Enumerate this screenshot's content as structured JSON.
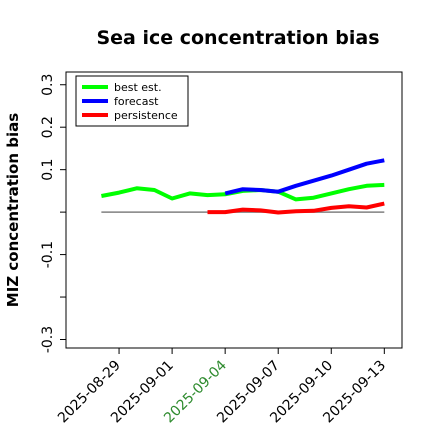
{
  "chart_data": {
    "type": "line",
    "title": "Sea ice concentration bias",
    "xlabel": "",
    "ylabel": "MIZ concentration bias",
    "ylim": [
      -0.32,
      0.33
    ],
    "yticks": [
      {
        "value": 0.3,
        "label": "0.3"
      },
      {
        "value": 0.2,
        "label": "0.2"
      },
      {
        "value": 0.1,
        "label": "0.1"
      },
      {
        "value": 0.0,
        "label": ""
      },
      {
        "value": -0.1,
        "label": "-0.1"
      },
      {
        "value": -0.2,
        "label": ""
      },
      {
        "value": -0.3,
        "label": "-0.3"
      }
    ],
    "xlim": [
      "2025-08-26",
      "2025-09-14"
    ],
    "xticks": [
      {
        "date": "2025-08-29",
        "label": "2025-08-29",
        "color": "#000000"
      },
      {
        "date": "2025-09-01",
        "label": "2025-09-01",
        "color": "#000000"
      },
      {
        "date": "2025-09-04",
        "label": "2025-09-04",
        "color": "#2e8b2e"
      },
      {
        "date": "2025-09-07",
        "label": "2025-09-07",
        "color": "#000000"
      },
      {
        "date": "2025-09-10",
        "label": "2025-09-10",
        "color": "#000000"
      },
      {
        "date": "2025-09-13",
        "label": "2025-09-13",
        "color": "#000000"
      }
    ],
    "reference_line": {
      "value": 0.0,
      "from": "2025-08-28",
      "to": "2025-09-13",
      "color": "#808080"
    },
    "legend_position": "top-left",
    "series": [
      {
        "name": "best est.",
        "color": "#00ff00",
        "x": [
          "2025-08-28",
          "2025-08-29",
          "2025-08-30",
          "2025-08-31",
          "2025-09-01",
          "2025-09-02",
          "2025-09-03",
          "2025-09-04",
          "2025-09-05",
          "2025-09-06",
          "2025-09-07",
          "2025-09-08",
          "2025-09-09",
          "2025-09-10",
          "2025-09-11",
          "2025-09-12",
          "2025-09-13"
        ],
        "y": [
          0.038,
          0.046,
          0.056,
          0.052,
          0.032,
          0.044,
          0.04,
          0.042,
          0.05,
          0.052,
          0.048,
          0.03,
          0.034,
          0.044,
          0.054,
          0.062,
          0.064
        ]
      },
      {
        "name": "forecast",
        "color": "#0000ff",
        "x": [
          "2025-09-04",
          "2025-09-05",
          "2025-09-06",
          "2025-09-07",
          "2025-09-08",
          "2025-09-09",
          "2025-09-10",
          "2025-09-11",
          "2025-09-12",
          "2025-09-13"
        ],
        "y": [
          0.044,
          0.054,
          0.052,
          0.048,
          0.062,
          0.074,
          0.086,
          0.1,
          0.114,
          0.122
        ]
      },
      {
        "name": "persistence",
        "color": "#ff0000",
        "x": [
          "2025-09-03",
          "2025-09-04",
          "2025-09-05",
          "2025-09-06",
          "2025-09-07",
          "2025-09-08",
          "2025-09-09",
          "2025-09-10",
          "2025-09-11",
          "2025-09-12",
          "2025-09-13"
        ],
        "y": [
          0.0,
          0.0,
          0.006,
          0.004,
          -0.001,
          0.002,
          0.003,
          0.01,
          0.014,
          0.011,
          0.02
        ]
      }
    ]
  }
}
